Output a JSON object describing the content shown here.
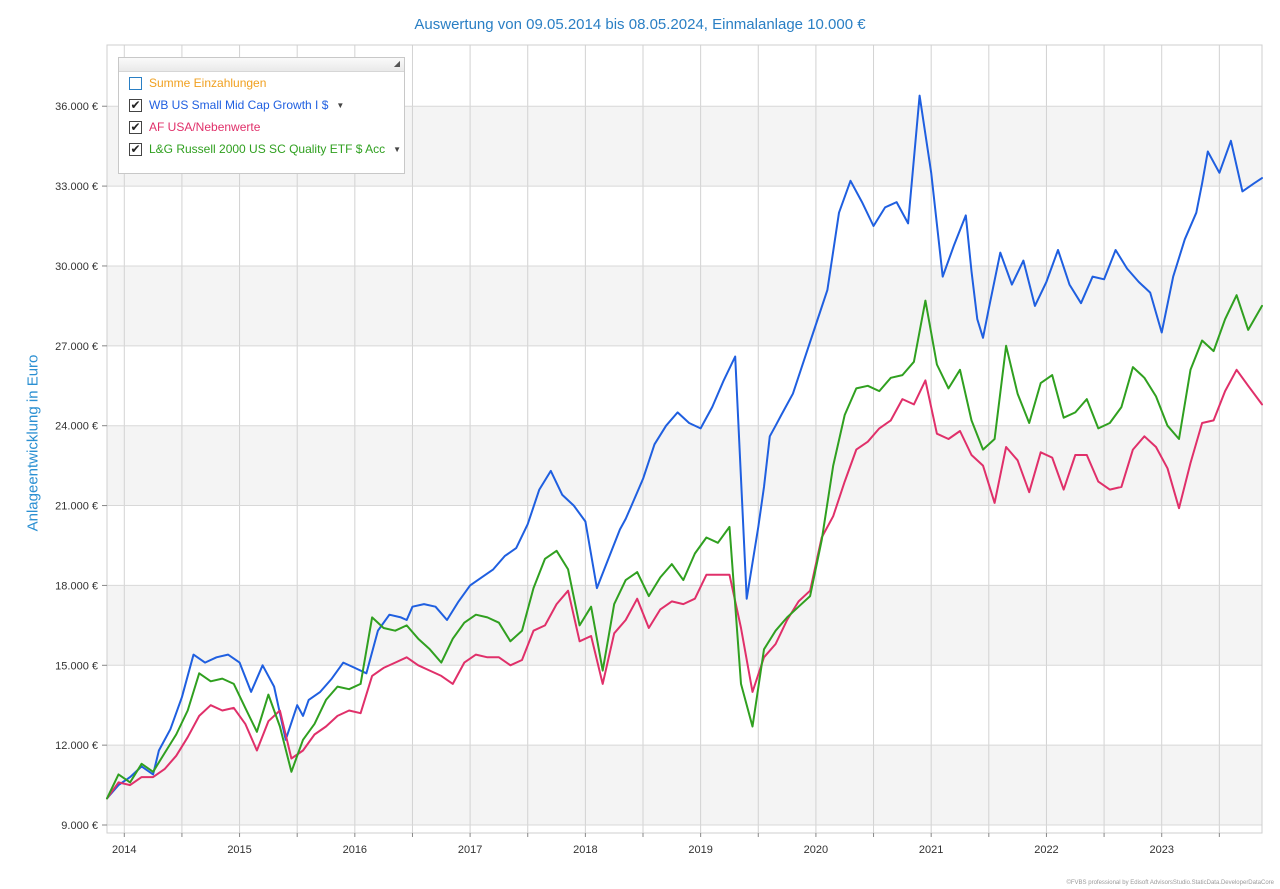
{
  "title": "Auswertung von 09.05.2014 bis 08.05.2024, Einmalanlage 10.000 €",
  "credit": "©FVBS professional by Edisoft AdvisorsStudio.StaticData.DeveloperDataCore",
  "legend": {
    "items": [
      {
        "label": "Summe Einzahlungen",
        "checked": false,
        "dropdown": false,
        "color": "#f0a020"
      },
      {
        "label": "WB US Small Mid Cap Growth I $",
        "checked": true,
        "dropdown": true,
        "color": "#1f5fe0"
      },
      {
        "label": "AF USA/Nebenwerte",
        "checked": true,
        "dropdown": false,
        "color": "#e0306a"
      },
      {
        "label": "L&G Russell 2000 US SC Quality ETF $ Acc",
        "checked": true,
        "dropdown": true,
        "color": "#30a020"
      }
    ]
  },
  "chart_data": {
    "type": "line",
    "title": "Auswertung von 09.05.2014 bis 08.05.2024, Einmalanlage 10.000 €",
    "ylabel": "Anlageentwicklung  in Euro",
    "xlabel": "",
    "ylim": [
      8700,
      38300
    ],
    "xlim": [
      2014.35,
      2024.37
    ],
    "yticks": [
      9000,
      12000,
      15000,
      18000,
      21000,
      24000,
      27000,
      30000,
      33000,
      36000
    ],
    "ytick_labels": [
      "9.000 €",
      "12.000 €",
      "15.000 €",
      "18.000 €",
      "21.000 €",
      "24.000 €",
      "27.000 €",
      "30.000 €",
      "33.000 €",
      "36.000 €"
    ],
    "x_year_labels": [
      {
        "label": "2014",
        "x": 2014.5
      },
      {
        "label": "2015",
        "x": 2015.5
      },
      {
        "label": "2016",
        "x": 2016.5
      },
      {
        "label": "2017",
        "x": 2017.5
      },
      {
        "label": "2018",
        "x": 2018.5
      },
      {
        "label": "2019",
        "x": 2019.5
      },
      {
        "label": "2020",
        "x": 2020.5
      },
      {
        "label": "2021",
        "x": 2021.5
      },
      {
        "label": "2022",
        "x": 2022.5
      },
      {
        "label": "2023",
        "x": 2023.5
      }
    ],
    "x_gridlines": [
      2014.5,
      2015,
      2015.5,
      2016,
      2016.5,
      2017,
      2017.5,
      2018,
      2018.5,
      2019,
      2019.5,
      2020,
      2020.5,
      2021,
      2021.5,
      2022,
      2022.5,
      2023,
      2023.5,
      2024
    ],
    "series": [
      {
        "name": "WB US Small Mid Cap Growth I $",
        "color": "#1f5fe0",
        "x": [
          2014.35,
          2014.45,
          2014.55,
          2014.65,
          2014.75,
          2014.8,
          2014.9,
          2015.0,
          2015.1,
          2015.2,
          2015.3,
          2015.4,
          2015.5,
          2015.6,
          2015.7,
          2015.8,
          2015.9,
          2016.0,
          2016.05,
          2016.1,
          2016.2,
          2016.3,
          2016.4,
          2016.5,
          2016.6,
          2016.7,
          2016.8,
          2016.9,
          2016.95,
          2017.0,
          2017.1,
          2017.2,
          2017.3,
          2017.4,
          2017.5,
          2017.6,
          2017.7,
          2017.8,
          2017.9,
          2018.0,
          2018.1,
          2018.2,
          2018.3,
          2018.4,
          2018.5,
          2018.6,
          2018.7,
          2018.8,
          2018.85,
          2018.9,
          2019.0,
          2019.1,
          2019.2,
          2019.3,
          2019.4,
          2019.5,
          2019.6,
          2019.7,
          2019.8,
          2019.9,
          2020.0,
          2020.05,
          2020.1,
          2020.15,
          2020.2,
          2020.3,
          2020.4,
          2020.5,
          2020.6,
          2020.7,
          2020.8,
          2020.9,
          2021.0,
          2021.1,
          2021.2,
          2021.3,
          2021.4,
          2021.5,
          2021.6,
          2021.7,
          2021.8,
          2021.85,
          2021.9,
          2021.95,
          2022.0,
          2022.1,
          2022.2,
          2022.3,
          2022.4,
          2022.5,
          2022.6,
          2022.7,
          2022.8,
          2022.9,
          2023.0,
          2023.1,
          2023.2,
          2023.3,
          2023.4,
          2023.5,
          2023.6,
          2023.7,
          2023.8,
          2023.85,
          2023.9,
          2024.0,
          2024.1,
          2024.2,
          2024.3,
          2024.37
        ],
        "values": [
          10000,
          10500,
          10800,
          11200,
          10900,
          11800,
          12600,
          13800,
          15400,
          15100,
          15300,
          15400,
          15100,
          14000,
          15000,
          14200,
          12200,
          13500,
          13100,
          13700,
          14000,
          14500,
          15100,
          14900,
          14700,
          16300,
          16900,
          16800,
          16700,
          17200,
          17300,
          17200,
          16700,
          17400,
          18000,
          18300,
          18600,
          19100,
          19400,
          20300,
          21600,
          22300,
          21400,
          21000,
          20400,
          17900,
          19000,
          20100,
          20500,
          21000,
          22000,
          23300,
          24000,
          24500,
          24100,
          23900,
          24700,
          25700,
          26600,
          17500,
          20200,
          21700,
          23600,
          24000,
          24400,
          25200,
          26500,
          27800,
          29100,
          32000,
          33200,
          32400,
          31500,
          32200,
          32400,
          31600,
          36400,
          33500,
          29600,
          30800,
          31900,
          29800,
          28000,
          27300,
          28400,
          30500,
          29300,
          30200,
          28500,
          29400,
          30600,
          29300,
          28600,
          29600,
          29500,
          30600,
          29900,
          29400,
          29000,
          27500,
          29600,
          31000,
          32000,
          33100,
          34300,
          33500,
          34700,
          32800,
          33100,
          33300
        ]
      },
      {
        "name": "AF USA/Nebenwerte",
        "color": "#e0306a",
        "x": [
          2014.35,
          2014.45,
          2014.55,
          2014.65,
          2014.75,
          2014.85,
          2014.95,
          2015.05,
          2015.15,
          2015.25,
          2015.35,
          2015.45,
          2015.55,
          2015.65,
          2015.75,
          2015.85,
          2015.95,
          2016.05,
          2016.15,
          2016.25,
          2016.35,
          2016.45,
          2016.55,
          2016.65,
          2016.75,
          2016.85,
          2016.95,
          2017.05,
          2017.15,
          2017.25,
          2017.35,
          2017.45,
          2017.55,
          2017.65,
          2017.75,
          2017.85,
          2017.95,
          2018.05,
          2018.15,
          2018.25,
          2018.35,
          2018.45,
          2018.55,
          2018.65,
          2018.75,
          2018.85,
          2018.95,
          2019.05,
          2019.15,
          2019.25,
          2019.35,
          2019.45,
          2019.55,
          2019.65,
          2019.75,
          2019.85,
          2019.95,
          2020.05,
          2020.15,
          2020.25,
          2020.35,
          2020.45,
          2020.55,
          2020.65,
          2020.75,
          2020.85,
          2020.95,
          2021.05,
          2021.15,
          2021.25,
          2021.35,
          2021.45,
          2021.55,
          2021.65,
          2021.75,
          2021.85,
          2021.95,
          2022.05,
          2022.15,
          2022.25,
          2022.35,
          2022.45,
          2022.55,
          2022.65,
          2022.75,
          2022.85,
          2022.95,
          2023.05,
          2023.15,
          2023.25,
          2023.35,
          2023.45,
          2023.55,
          2023.65,
          2023.75,
          2023.85,
          2023.95,
          2024.05,
          2024.15,
          2024.25,
          2024.37
        ],
        "values": [
          10000,
          10600,
          10500,
          10800,
          10800,
          11100,
          11600,
          12300,
          13100,
          13500,
          13300,
          13400,
          12800,
          11800,
          12900,
          13300,
          11500,
          11800,
          12400,
          12700,
          13100,
          13300,
          13200,
          14600,
          14900,
          15100,
          15300,
          15000,
          14800,
          14600,
          14300,
          15100,
          15400,
          15300,
          15300,
          15000,
          15200,
          16300,
          16500,
          17300,
          17800,
          15900,
          16100,
          14300,
          16200,
          16700,
          17500,
          16400,
          17100,
          17400,
          17300,
          17500,
          18400,
          18400,
          18400,
          16400,
          14000,
          15300,
          15800,
          16700,
          17400,
          17800,
          19800,
          20600,
          21900,
          23100,
          23400,
          23900,
          24200,
          25000,
          24800,
          25700,
          23700,
          23500,
          23800,
          22900,
          22500,
          21100,
          23200,
          22700,
          21500,
          23000,
          22800,
          21600,
          22900,
          22900,
          21900,
          21600,
          21700,
          23100,
          23600,
          23200,
          22400,
          20900,
          22600,
          24100,
          24200,
          25300,
          26100,
          25500,
          24800
        ]
      },
      {
        "name": "L&G Russell 2000 US SC Quality ETF $ Acc",
        "color": "#30a020",
        "x": [
          2014.35,
          2014.45,
          2014.55,
          2014.65,
          2014.75,
          2014.85,
          2014.95,
          2015.05,
          2015.15,
          2015.25,
          2015.35,
          2015.45,
          2015.55,
          2015.65,
          2015.75,
          2015.85,
          2015.95,
          2016.05,
          2016.15,
          2016.25,
          2016.35,
          2016.45,
          2016.55,
          2016.65,
          2016.75,
          2016.85,
          2016.95,
          2017.05,
          2017.15,
          2017.25,
          2017.35,
          2017.45,
          2017.55,
          2017.65,
          2017.75,
          2017.85,
          2017.95,
          2018.05,
          2018.15,
          2018.25,
          2018.35,
          2018.45,
          2018.55,
          2018.65,
          2018.75,
          2018.85,
          2018.95,
          2019.05,
          2019.15,
          2019.25,
          2019.35,
          2019.45,
          2019.55,
          2019.65,
          2019.75,
          2019.85,
          2019.95,
          2020.05,
          2020.15,
          2020.25,
          2020.35,
          2020.45,
          2020.55,
          2020.65,
          2020.75,
          2020.85,
          2020.95,
          2021.05,
          2021.15,
          2021.25,
          2021.35,
          2021.45,
          2021.55,
          2021.65,
          2021.75,
          2021.85,
          2021.95,
          2022.05,
          2022.15,
          2022.25,
          2022.35,
          2022.45,
          2022.55,
          2022.65,
          2022.75,
          2022.85,
          2022.95,
          2023.05,
          2023.15,
          2023.25,
          2023.35,
          2023.45,
          2023.55,
          2023.65,
          2023.75,
          2023.85,
          2023.95,
          2024.05,
          2024.15,
          2024.25,
          2024.37
        ],
        "values": [
          10000,
          10900,
          10600,
          11300,
          11000,
          11700,
          12400,
          13300,
          14700,
          14400,
          14500,
          14300,
          13400,
          12500,
          13900,
          12700,
          11000,
          12200,
          12800,
          13700,
          14200,
          14100,
          14300,
          16800,
          16400,
          16300,
          16500,
          16000,
          15600,
          15100,
          16000,
          16600,
          16900,
          16800,
          16600,
          15900,
          16300,
          17900,
          19000,
          19300,
          18600,
          16500,
          17200,
          14800,
          17300,
          18200,
          18500,
          17600,
          18300,
          18800,
          18200,
          19200,
          19800,
          19600,
          20200,
          14300,
          12700,
          15600,
          16300,
          16800,
          17200,
          17600,
          19700,
          22500,
          24400,
          25400,
          25500,
          25300,
          25800,
          25900,
          26400,
          28700,
          26300,
          25400,
          26100,
          24200,
          23100,
          23500,
          27000,
          25200,
          24100,
          25600,
          25900,
          24300,
          24500,
          25000,
          23900,
          24100,
          24700,
          26200,
          25800,
          25100,
          24000,
          23500,
          26100,
          27200,
          26800,
          28000,
          28900,
          27600,
          28500
        ]
      }
    ]
  }
}
